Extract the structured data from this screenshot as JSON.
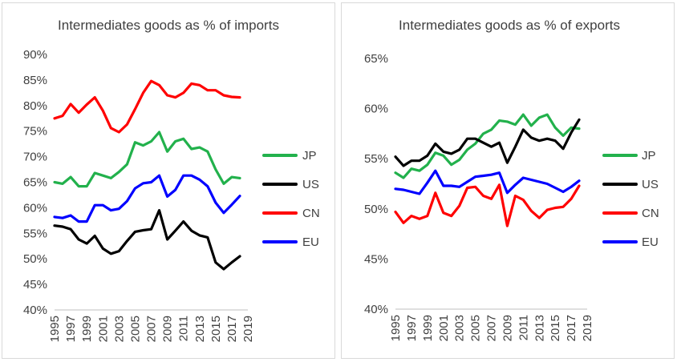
{
  "chart_data": [
    {
      "type": "line",
      "title": "Intermediates goods as % of imports",
      "xlabel": "",
      "ylabel": "",
      "x": [
        1995,
        1996,
        1997,
        1998,
        1999,
        2000,
        2001,
        2002,
        2003,
        2004,
        2005,
        2006,
        2007,
        2008,
        2009,
        2010,
        2011,
        2012,
        2013,
        2014,
        2015,
        2016,
        2017,
        2018
      ],
      "ylim": [
        40,
        90
      ],
      "yticks": [
        "40%",
        "45%",
        "50%",
        "55%",
        "60%",
        "65%",
        "70%",
        "75%",
        "80%",
        "85%",
        "90%"
      ],
      "yticks_values": [
        40,
        45,
        50,
        55,
        60,
        65,
        70,
        75,
        80,
        85,
        90
      ],
      "xticks": [
        "1995",
        "1997",
        "1999",
        "2001",
        "2003",
        "2005",
        "2007",
        "2009",
        "2011",
        "2013",
        "2015",
        "2017",
        "2019"
      ],
      "xticks_values": [
        1995,
        1997,
        1999,
        2001,
        2003,
        2005,
        2007,
        2009,
        2011,
        2013,
        2015,
        2017,
        2019
      ],
      "xlim": [
        1995,
        2019
      ],
      "grid": false,
      "legend_position": "right",
      "series": [
        {
          "name": "JP",
          "color": "#22B14C",
          "values": [
            65.0,
            64.7,
            66.0,
            64.2,
            64.2,
            66.8,
            66.3,
            65.8,
            67.0,
            68.5,
            72.8,
            72.2,
            73.0,
            74.8,
            71.0,
            73.0,
            73.5,
            71.5,
            71.8,
            71.0,
            67.5,
            64.7,
            66.0,
            65.8
          ]
        },
        {
          "name": "US",
          "color": "#000000",
          "values": [
            56.5,
            56.3,
            55.8,
            53.8,
            53.0,
            54.5,
            52.0,
            51.0,
            51.5,
            53.5,
            55.3,
            55.6,
            55.8,
            59.5,
            53.8,
            55.5,
            57.3,
            55.5,
            54.6,
            54.2,
            49.3,
            48.0,
            49.3,
            50.5
          ]
        },
        {
          "name": "CN",
          "color": "#FF0000",
          "values": [
            77.5,
            78.0,
            80.3,
            78.6,
            80.2,
            81.6,
            79.0,
            75.6,
            74.8,
            76.3,
            79.3,
            82.5,
            84.8,
            84.0,
            82.0,
            81.6,
            82.5,
            84.3,
            84.0,
            83.0,
            83.0,
            82.0,
            81.7,
            81.6
          ]
        },
        {
          "name": "EU",
          "color": "#0000FF",
          "values": [
            58.2,
            58.0,
            58.5,
            57.3,
            57.3,
            60.5,
            60.5,
            59.5,
            59.8,
            61.3,
            63.8,
            64.8,
            65.0,
            66.3,
            62.2,
            63.5,
            66.3,
            66.3,
            65.5,
            64.2,
            61.0,
            59.0,
            60.6,
            62.3
          ]
        }
      ]
    },
    {
      "type": "line",
      "title": "Intermediates goods as % of exports",
      "xlabel": "",
      "ylabel": "",
      "x": [
        1995,
        1996,
        1997,
        1998,
        1999,
        2000,
        2001,
        2002,
        2003,
        2004,
        2005,
        2006,
        2007,
        2008,
        2009,
        2010,
        2011,
        2012,
        2013,
        2014,
        2015,
        2016,
        2017,
        2018
      ],
      "ylim": [
        40,
        65
      ],
      "yticks": [
        "40%",
        "45%",
        "50%",
        "55%",
        "60%",
        "65%"
      ],
      "yticks_values": [
        40,
        45,
        50,
        55,
        60,
        65
      ],
      "xticks": [
        "1995",
        "1997",
        "1999",
        "2001",
        "2003",
        "2005",
        "2007",
        "2009",
        "2011",
        "2013",
        "2015",
        "2017",
        "2019"
      ],
      "xticks_values": [
        1995,
        1997,
        1999,
        2001,
        2003,
        2005,
        2007,
        2009,
        2011,
        2013,
        2015,
        2017,
        2019
      ],
      "xlim": [
        1995,
        2019
      ],
      "grid": false,
      "legend_position": "right",
      "series": [
        {
          "name": "JP",
          "color": "#22B14C",
          "values": [
            53.6,
            53.1,
            54.0,
            53.8,
            54.4,
            55.6,
            55.3,
            54.4,
            54.9,
            55.9,
            56.5,
            57.5,
            57.9,
            58.8,
            58.7,
            58.4,
            59.4,
            58.3,
            59.1,
            59.4,
            58.1,
            57.3,
            58.1,
            58.0
          ]
        },
        {
          "name": "US",
          "color": "#000000",
          "values": [
            55.2,
            54.3,
            54.8,
            54.8,
            55.3,
            56.5,
            55.7,
            55.5,
            55.9,
            57.0,
            57.0,
            56.6,
            56.2,
            56.6,
            54.6,
            56.2,
            57.9,
            57.1,
            56.8,
            57.0,
            56.8,
            56.0,
            57.6,
            58.9
          ]
        },
        {
          "name": "CN",
          "color": "#FF0000",
          "values": [
            49.7,
            48.6,
            49.3,
            49.0,
            49.3,
            51.6,
            49.6,
            49.3,
            50.3,
            52.1,
            52.2,
            51.3,
            51.0,
            52.4,
            48.3,
            51.3,
            50.9,
            49.8,
            49.1,
            49.9,
            50.1,
            50.2,
            51.0,
            52.3
          ]
        },
        {
          "name": "EU",
          "color": "#0000FF",
          "values": [
            52.0,
            51.9,
            51.7,
            51.5,
            52.6,
            53.8,
            52.3,
            52.3,
            52.2,
            52.7,
            53.2,
            53.3,
            53.4,
            53.6,
            51.6,
            52.4,
            53.1,
            52.9,
            52.7,
            52.5,
            52.1,
            51.7,
            52.2,
            52.8
          ]
        }
      ]
    }
  ]
}
